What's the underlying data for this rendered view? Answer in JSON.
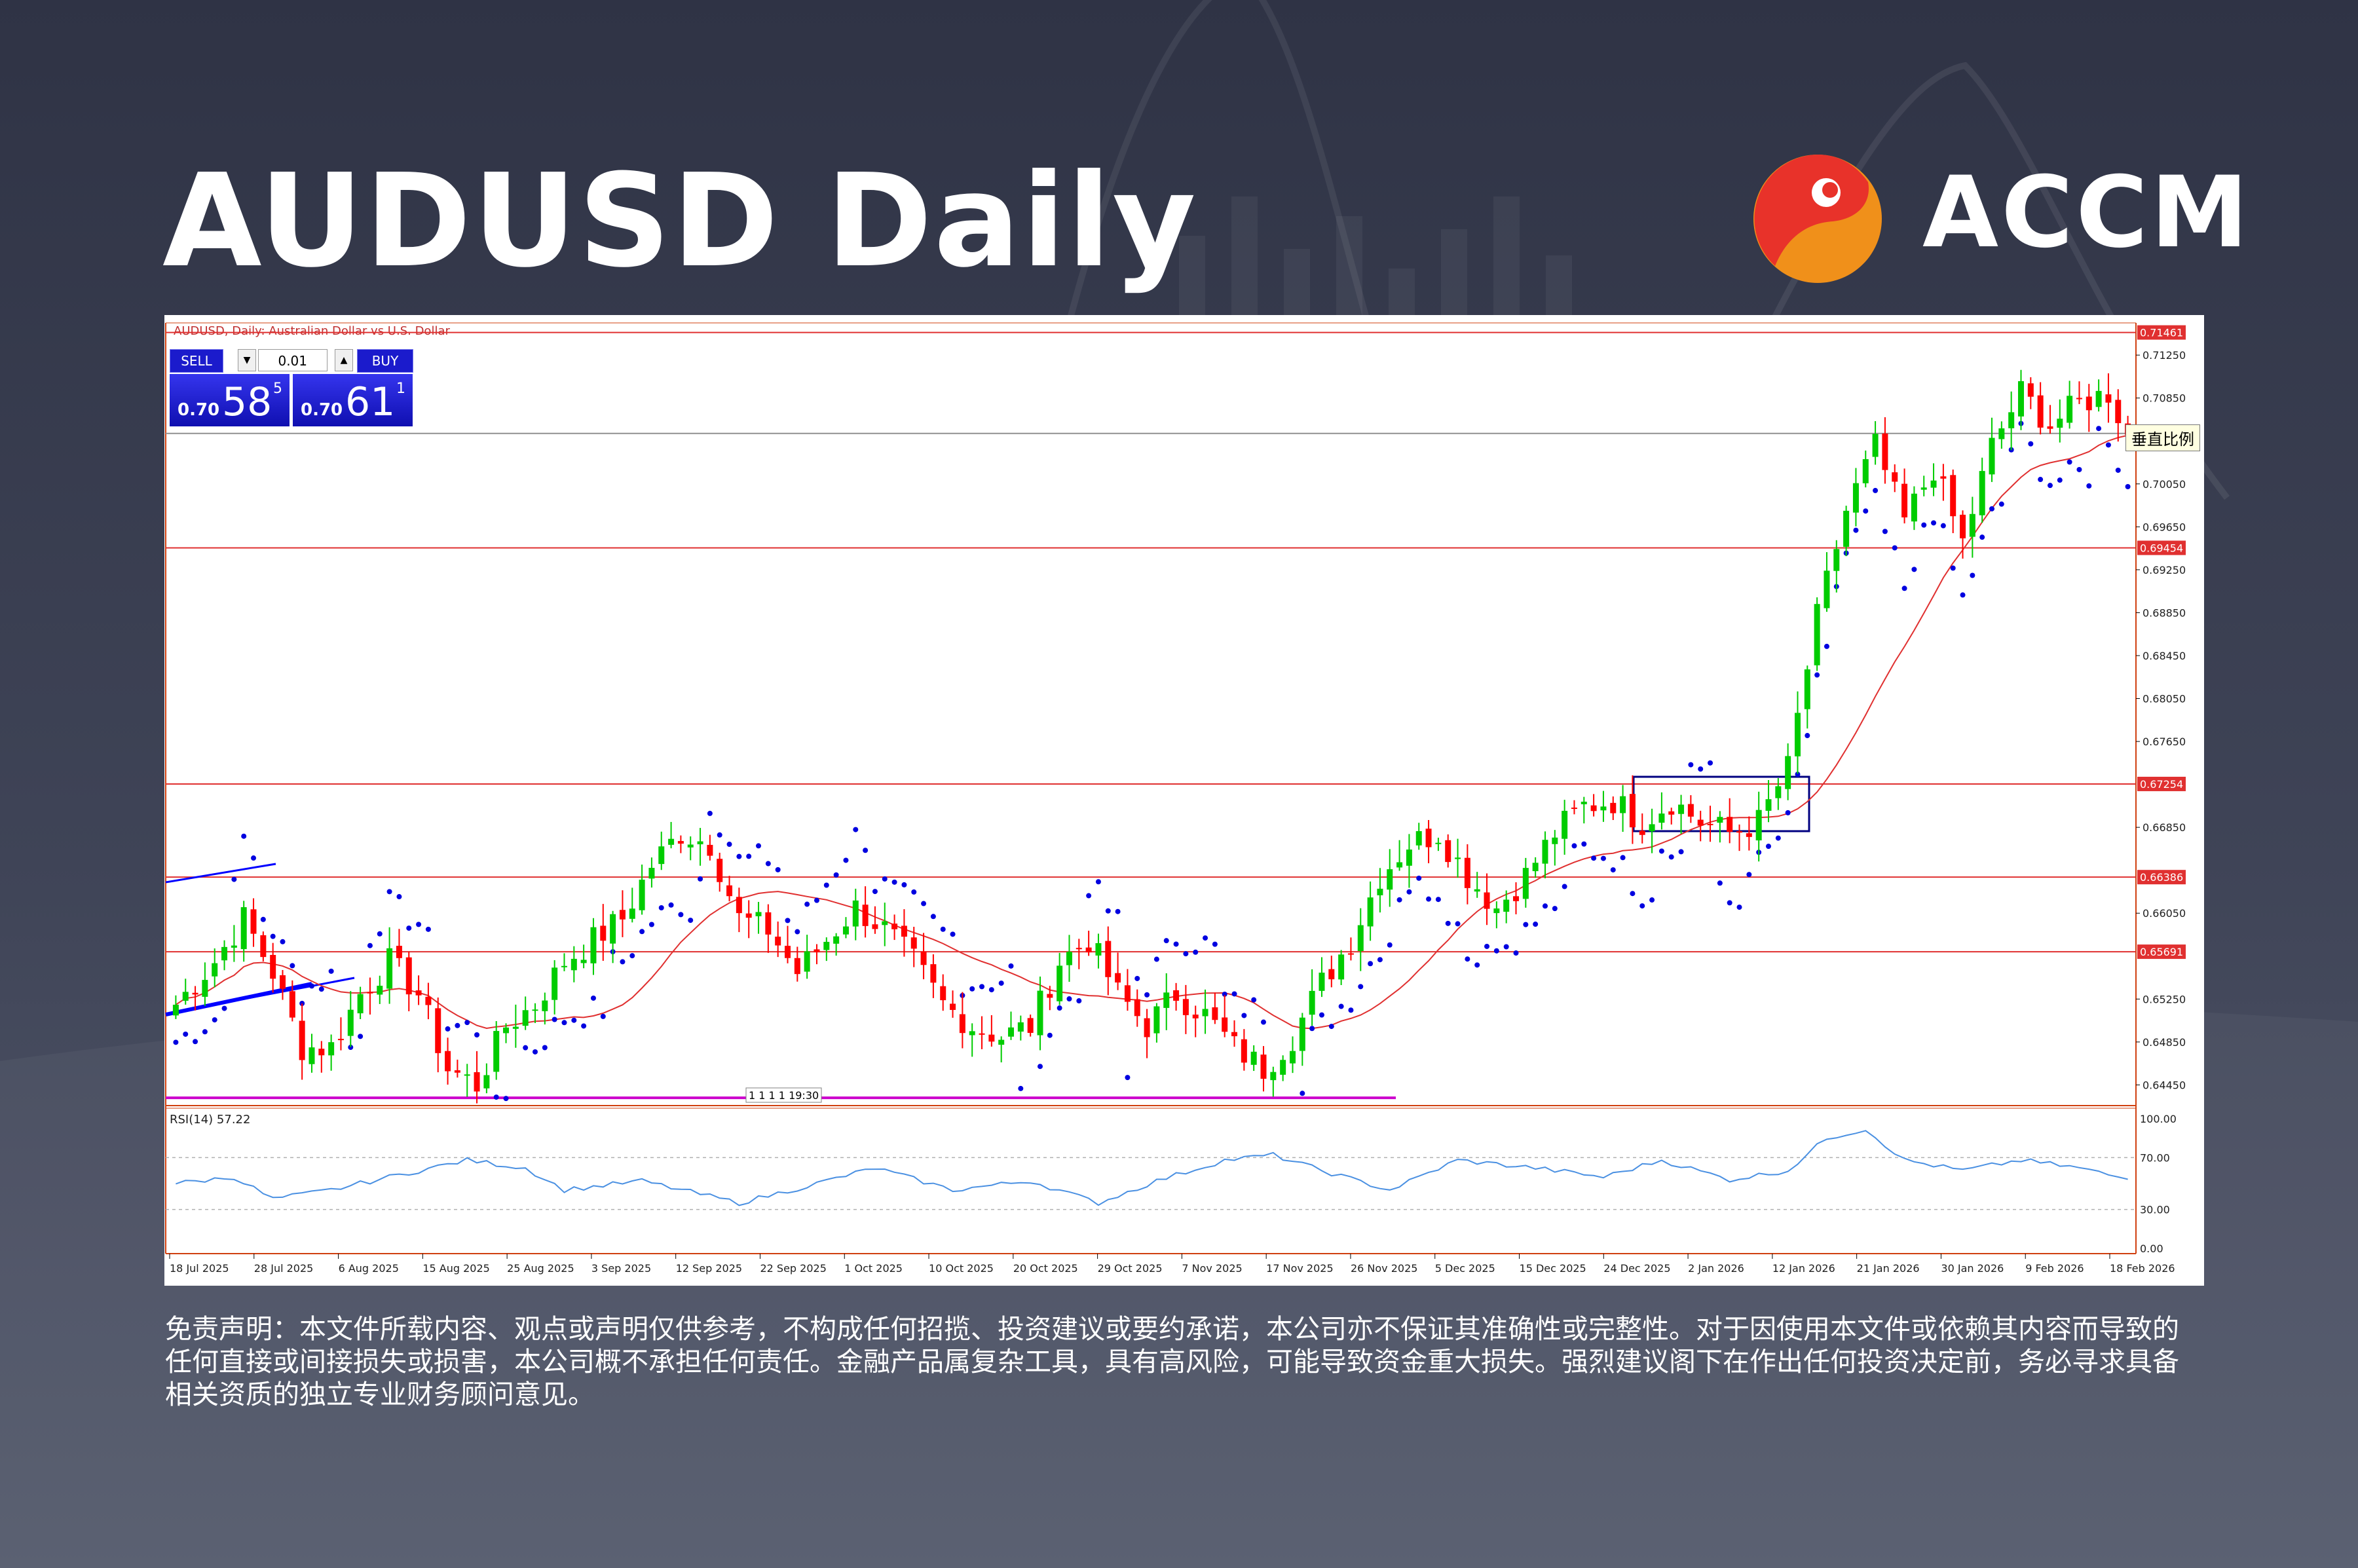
{
  "header": {
    "title": "AUDUSD Daily",
    "brand": "ACCM"
  },
  "chart_header": {
    "caption": "AUDUSD, Daily: Australian Dollar vs U.S. Dollar"
  },
  "trade_panel": {
    "sell_label": "SELL",
    "buy_label": "BUY",
    "lot": "0.01",
    "sell_small": "0.70",
    "sell_big": "58",
    "sell_sup": "5",
    "buy_small": "0.70",
    "buy_big": "61",
    "buy_sup": "1"
  },
  "scale_tooltip": "垂直比例",
  "rsi_label": "RSI(14) 57.22",
  "time_marker": "1 1 1 1 19:30",
  "disclaimer": "免责声明：本文件所载内容、观点或声明仅供参考，不构成任何招揽、投资建议或要约承诺，本公司亦不保证其准确性或完整性。对于因使用本文件或依赖其内容而导致的任何直接或间接损失或损害，本公司概不承担任何责任。金融产品属复杂工具，具有高风险，可能导致资金重大损失。强烈建议阁下在作出任何投资决定前，务必寻求具备相关资质的独立专业财务顾问意见。",
  "colors": {
    "bull": "#00cc00",
    "bear": "#ff0000",
    "ma": "#e03030",
    "sar": "#0000e0",
    "level": "#e03030",
    "rsi": "#4a90e2",
    "axis": "#d04010",
    "support": "#cc00cc",
    "channel": "#0000ff"
  },
  "chart_data": {
    "type": "candlestick",
    "title": "AUDUSD, Daily: Australian Dollar vs U.S. Dollar",
    "ylim": [
      0.643,
      0.7155
    ],
    "y_ticks": [
      "0.71250",
      "0.70850",
      "0.70050",
      "0.69650",
      "0.69250",
      "0.68850",
      "0.68450",
      "0.68050",
      "0.67650",
      "0.66850",
      "0.66050",
      "0.65250",
      "0.64850",
      "0.64450"
    ],
    "horizontal_levels": [
      {
        "value": 0.71461,
        "label": "0.71461"
      },
      {
        "value": 0.69454,
        "label": "0.69454"
      },
      {
        "value": 0.67254,
        "label": "0.67254"
      },
      {
        "value": 0.66386,
        "label": "0.66386"
      },
      {
        "value": 0.65691,
        "label": "0.65691"
      }
    ],
    "gray_line": 0.7052,
    "support_line": 0.6433,
    "x_labels": [
      "18 Jul 2025",
      "28 Jul 2025",
      "6 Aug 2025",
      "15 Aug 2025",
      "25 Aug 2025",
      "3 Sep 2025",
      "12 Sep 2025",
      "22 Sep 2025",
      "1 Oct 2025",
      "10 Oct 2025",
      "20 Oct 2025",
      "29 Oct 2025",
      "7 Nov 2025",
      "17 Nov 2025",
      "26 Nov 2025",
      "5 Dec 2025",
      "15 Dec 2025",
      "24 Dec 2025",
      "2 Jan 2026",
      "12 Jan 2026",
      "21 Jan 2026",
      "30 Jan 2026",
      "9 Feb 2026",
      "18 Feb 2026"
    ],
    "close_anchors": [
      [
        0,
        0.652
      ],
      [
        4,
        0.656
      ],
      [
        7,
        0.66
      ],
      [
        10,
        0.655
      ],
      [
        13,
        0.648
      ],
      [
        16,
        0.648
      ],
      [
        19,
        0.653
      ],
      [
        22,
        0.656
      ],
      [
        25,
        0.653
      ],
      [
        28,
        0.646
      ],
      [
        31,
        0.6445
      ],
      [
        34,
        0.65
      ],
      [
        37,
        0.652
      ],
      [
        40,
        0.656
      ],
      [
        43,
        0.658
      ],
      [
        46,
        0.66
      ],
      [
        49,
        0.665
      ],
      [
        52,
        0.668
      ],
      [
        55,
        0.667
      ],
      [
        58,
        0.66
      ],
      [
        61,
        0.659
      ],
      [
        64,
        0.655
      ],
      [
        67,
        0.658
      ],
      [
        70,
        0.661
      ],
      [
        73,
        0.659
      ],
      [
        76,
        0.656
      ],
      [
        79,
        0.652
      ],
      [
        82,
        0.65
      ],
      [
        85,
        0.649
      ],
      [
        88,
        0.65
      ],
      [
        91,
        0.656
      ],
      [
        94,
        0.658
      ],
      [
        97,
        0.653
      ],
      [
        100,
        0.65
      ],
      [
        103,
        0.653
      ],
      [
        106,
        0.651
      ],
      [
        109,
        0.648
      ],
      [
        112,
        0.646
      ],
      [
        115,
        0.649
      ],
      [
        118,
        0.654
      ],
      [
        121,
        0.658
      ],
      [
        124,
        0.664
      ],
      [
        127,
        0.667
      ],
      [
        130,
        0.668
      ],
      [
        133,
        0.664
      ],
      [
        136,
        0.661
      ],
      [
        139,
        0.664
      ],
      [
        142,
        0.668
      ],
      [
        145,
        0.6705
      ],
      [
        148,
        0.671
      ],
      [
        151,
        0.669
      ],
      [
        154,
        0.671
      ],
      [
        157,
        0.669
      ],
      [
        160,
        0.668
      ],
      [
        163,
        0.669
      ],
      [
        166,
        0.674
      ],
      [
        169,
        0.688
      ],
      [
        172,
        0.698
      ],
      [
        175,
        0.704
      ],
      [
        178,
        0.697
      ],
      [
        181,
        0.702
      ],
      [
        184,
        0.695
      ],
      [
        187,
        0.704
      ],
      [
        190,
        0.709
      ],
      [
        193,
        0.706
      ],
      [
        196,
        0.708
      ],
      [
        199,
        0.709
      ],
      [
        201,
        0.705
      ]
    ],
    "moving_average": "≈20-period, follows close",
    "parabolic_sar": "dots below price in uptrends, above in downtrends",
    "rsi": {
      "period": 14,
      "last": 57.22,
      "levels": [
        100,
        70,
        30,
        0
      ],
      "anchors": [
        [
          0,
          50
        ],
        [
          6,
          55
        ],
        [
          10,
          38
        ],
        [
          16,
          45
        ],
        [
          22,
          55
        ],
        [
          30,
          68
        ],
        [
          36,
          62
        ],
        [
          40,
          45
        ],
        [
          48,
          52
        ],
        [
          58,
          35
        ],
        [
          65,
          48
        ],
        [
          72,
          62
        ],
        [
          80,
          45
        ],
        [
          88,
          52
        ],
        [
          95,
          35
        ],
        [
          101,
          52
        ],
        [
          108,
          68
        ],
        [
          113,
          72
        ],
        [
          118,
          60
        ],
        [
          125,
          45
        ],
        [
          132,
          68
        ],
        [
          140,
          62
        ],
        [
          147,
          55
        ],
        [
          153,
          68
        ],
        [
          160,
          53
        ],
        [
          166,
          60
        ],
        [
          170,
          85
        ],
        [
          174,
          92
        ],
        [
          178,
          68
        ],
        [
          184,
          60
        ],
        [
          190,
          68
        ],
        [
          196,
          62
        ],
        [
          200,
          55
        ]
      ]
    }
  }
}
